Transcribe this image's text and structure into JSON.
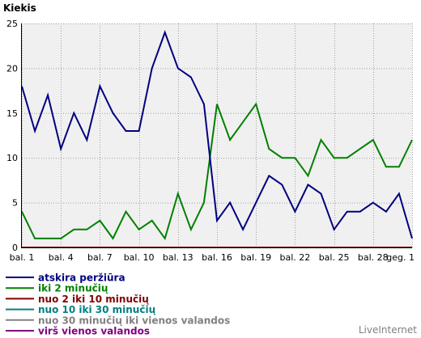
{
  "chart_data": {
    "type": "line",
    "title": "Kiekis",
    "xlabel": "",
    "ylabel": "",
    "ylim": [
      0,
      25
    ],
    "yticks": [
      0,
      5,
      10,
      15,
      20,
      25
    ],
    "grid": true,
    "legend_position": "bottom-left",
    "categories": [
      "bal. 1",
      "bal. 2",
      "bal. 3",
      "bal. 4",
      "bal. 5",
      "bal. 6",
      "bal. 7",
      "bal. 8",
      "bal. 9",
      "bal. 10",
      "bal. 11",
      "bal. 12",
      "bal. 13",
      "bal. 14",
      "bal. 15",
      "bal. 16",
      "bal. 17",
      "bal. 18",
      "bal. 19",
      "bal. 20",
      "bal. 21",
      "bal. 22",
      "bal. 23",
      "bal. 24",
      "bal. 25",
      "bal. 26",
      "bal. 27",
      "bal. 28",
      "bal. 29",
      "bal. 30",
      "geg. 1"
    ],
    "x_tick_labels": [
      "bal. 1",
      "bal. 4",
      "bal. 7",
      "bal. 10",
      "bal. 13",
      "bal. 16",
      "bal. 19",
      "bal. 22",
      "bal. 25",
      "bal. 28",
      "geg. 1"
    ],
    "series": [
      {
        "name": "atskira peržiūra",
        "color": "#000080",
        "values": [
          18,
          13,
          17,
          11,
          15,
          12,
          18,
          15,
          13,
          13,
          20,
          24,
          20,
          19,
          16,
          3,
          5,
          2,
          5,
          8,
          7,
          4,
          7,
          6,
          2,
          4,
          4,
          5,
          4,
          6,
          1
        ]
      },
      {
        "name": "iki 2 minučių",
        "color": "#008000",
        "values": [
          4,
          1,
          1,
          1,
          2,
          2,
          3,
          1,
          4,
          2,
          3,
          1,
          6,
          2,
          5,
          16,
          12,
          14,
          16,
          11,
          10,
          10,
          8,
          12,
          10,
          10,
          11,
          12,
          9,
          9,
          12
        ]
      },
      {
        "name": "nuo 2 iki 10 minučių",
        "color": "#800000",
        "values": [
          0,
          0,
          0,
          0,
          0,
          0,
          0,
          0,
          0,
          0,
          0,
          0,
          0,
          0,
          0,
          0,
          0,
          0,
          0,
          0,
          0,
          0,
          0,
          0,
          0,
          0,
          0,
          0,
          0,
          0,
          0
        ]
      },
      {
        "name": "nuo 10 iki 30 minučių",
        "color": "#008080",
        "values": [
          0,
          0,
          0,
          0,
          0,
          0,
          0,
          0,
          0,
          0,
          0,
          0,
          0,
          0,
          0,
          0,
          0,
          0,
          0,
          0,
          0,
          0,
          0,
          0,
          0,
          0,
          0,
          0,
          0,
          0,
          0
        ]
      },
      {
        "name": "nuo 30 minučių iki vienos valandos",
        "color": "#808080",
        "values": [
          0,
          0,
          0,
          0,
          0,
          0,
          0,
          0,
          0,
          0,
          0,
          0,
          0,
          0,
          0,
          0,
          0,
          0,
          0,
          0,
          0,
          0,
          0,
          0,
          0,
          0,
          0,
          0,
          0,
          0,
          0
        ]
      },
      {
        "name": "virš vienos valandos",
        "color": "#800080",
        "values": [
          0,
          0,
          0,
          0,
          0,
          0,
          0,
          0,
          0,
          0,
          0,
          0,
          0,
          0,
          0,
          0,
          0,
          0,
          0,
          0,
          0,
          0,
          0,
          0,
          0,
          0,
          0,
          0,
          0,
          0,
          0
        ]
      }
    ]
  },
  "branding": {
    "label": "LiveInternet"
  },
  "colors": {
    "plot_background": "#f0f0f0",
    "grid": "#a0a0a0",
    "axis": "#000000"
  }
}
